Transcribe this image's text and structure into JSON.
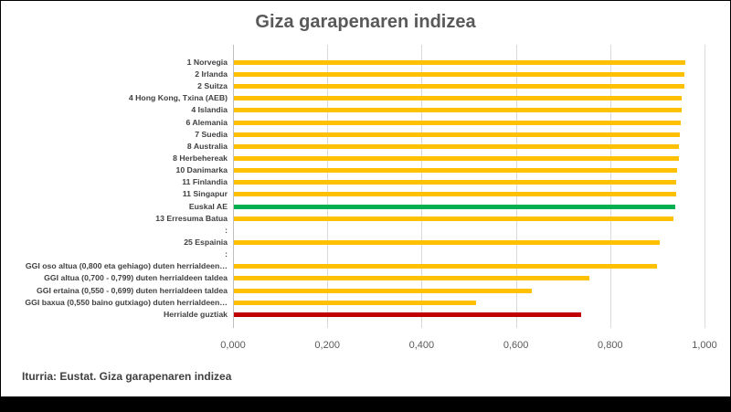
{
  "window": {
    "title": "Giza garapenaren indizea"
  },
  "source_caption": "Iturria: Eustat. Giza garapenaren indizea",
  "chart_data": {
    "type": "bar",
    "orientation": "horizontal",
    "title": "Giza garapenaren indizea",
    "xlabel": "",
    "ylabel": "",
    "xlim": [
      0,
      1
    ],
    "grid": true,
    "legend": false,
    "x_ticks": [
      {
        "label": "0,000",
        "value": 0.0
      },
      {
        "label": "0,200",
        "value": 0.2
      },
      {
        "label": "0,400",
        "value": 0.4
      },
      {
        "label": "0,600",
        "value": 0.6
      },
      {
        "label": "0,800",
        "value": 0.8
      },
      {
        "label": "1,000",
        "value": 1.0
      }
    ],
    "colors": {
      "country": "#FFC000",
      "basque_highlight": "#00B050",
      "world_total": "#C00000"
    },
    "rows": [
      {
        "label": "1 Norvegia",
        "value": 0.957,
        "color_key": "country"
      },
      {
        "label": "2 Irlanda",
        "value": 0.955,
        "color_key": "country"
      },
      {
        "label": "2 Suitza",
        "value": 0.955,
        "color_key": "country"
      },
      {
        "label": "4 Hong Kong, Txina (AEB)",
        "value": 0.949,
        "color_key": "country"
      },
      {
        "label": "4 Islandia",
        "value": 0.949,
        "color_key": "country"
      },
      {
        "label": "6 Alemania",
        "value": 0.947,
        "color_key": "country"
      },
      {
        "label": "7 Suedia",
        "value": 0.945,
        "color_key": "country"
      },
      {
        "label": "8 Australia",
        "value": 0.944,
        "color_key": "country"
      },
      {
        "label": "8 Herbehereak",
        "value": 0.944,
        "color_key": "country"
      },
      {
        "label": "10 Danimarka",
        "value": 0.94,
        "color_key": "country"
      },
      {
        "label": "11 Finlandia",
        "value": 0.938,
        "color_key": "country"
      },
      {
        "label": "11 Singapur",
        "value": 0.938,
        "color_key": "country"
      },
      {
        "label": "Euskal AE",
        "value": 0.937,
        "color_key": "basque_highlight"
      },
      {
        "label": "13 Erresuma Batua",
        "value": 0.932,
        "color_key": "country"
      },
      {
        "label": ":",
        "value": null,
        "color_key": null
      },
      {
        "label": "25 Espainia",
        "value": 0.904,
        "color_key": "country"
      },
      {
        "label": ":",
        "value": null,
        "color_key": null
      },
      {
        "label": "GGI oso altua (0,800 eta gehiago) duten herrialdeen…",
        "value": 0.898,
        "color_key": "country"
      },
      {
        "label": "GGI altua (0,700 - 0,799) duten herrialdeen taldea",
        "value": 0.753,
        "color_key": "country"
      },
      {
        "label": "GGI ertaina (0,550 - 0,699) duten herrialdeen taldea",
        "value": 0.631,
        "color_key": "country"
      },
      {
        "label": "GGI baxua (0,550 baino gutxiago) duten herrialdeen…",
        "value": 0.513,
        "color_key": "country"
      },
      {
        "label": "Herrialde guztiak",
        "value": 0.737,
        "color_key": "world_total"
      }
    ]
  }
}
